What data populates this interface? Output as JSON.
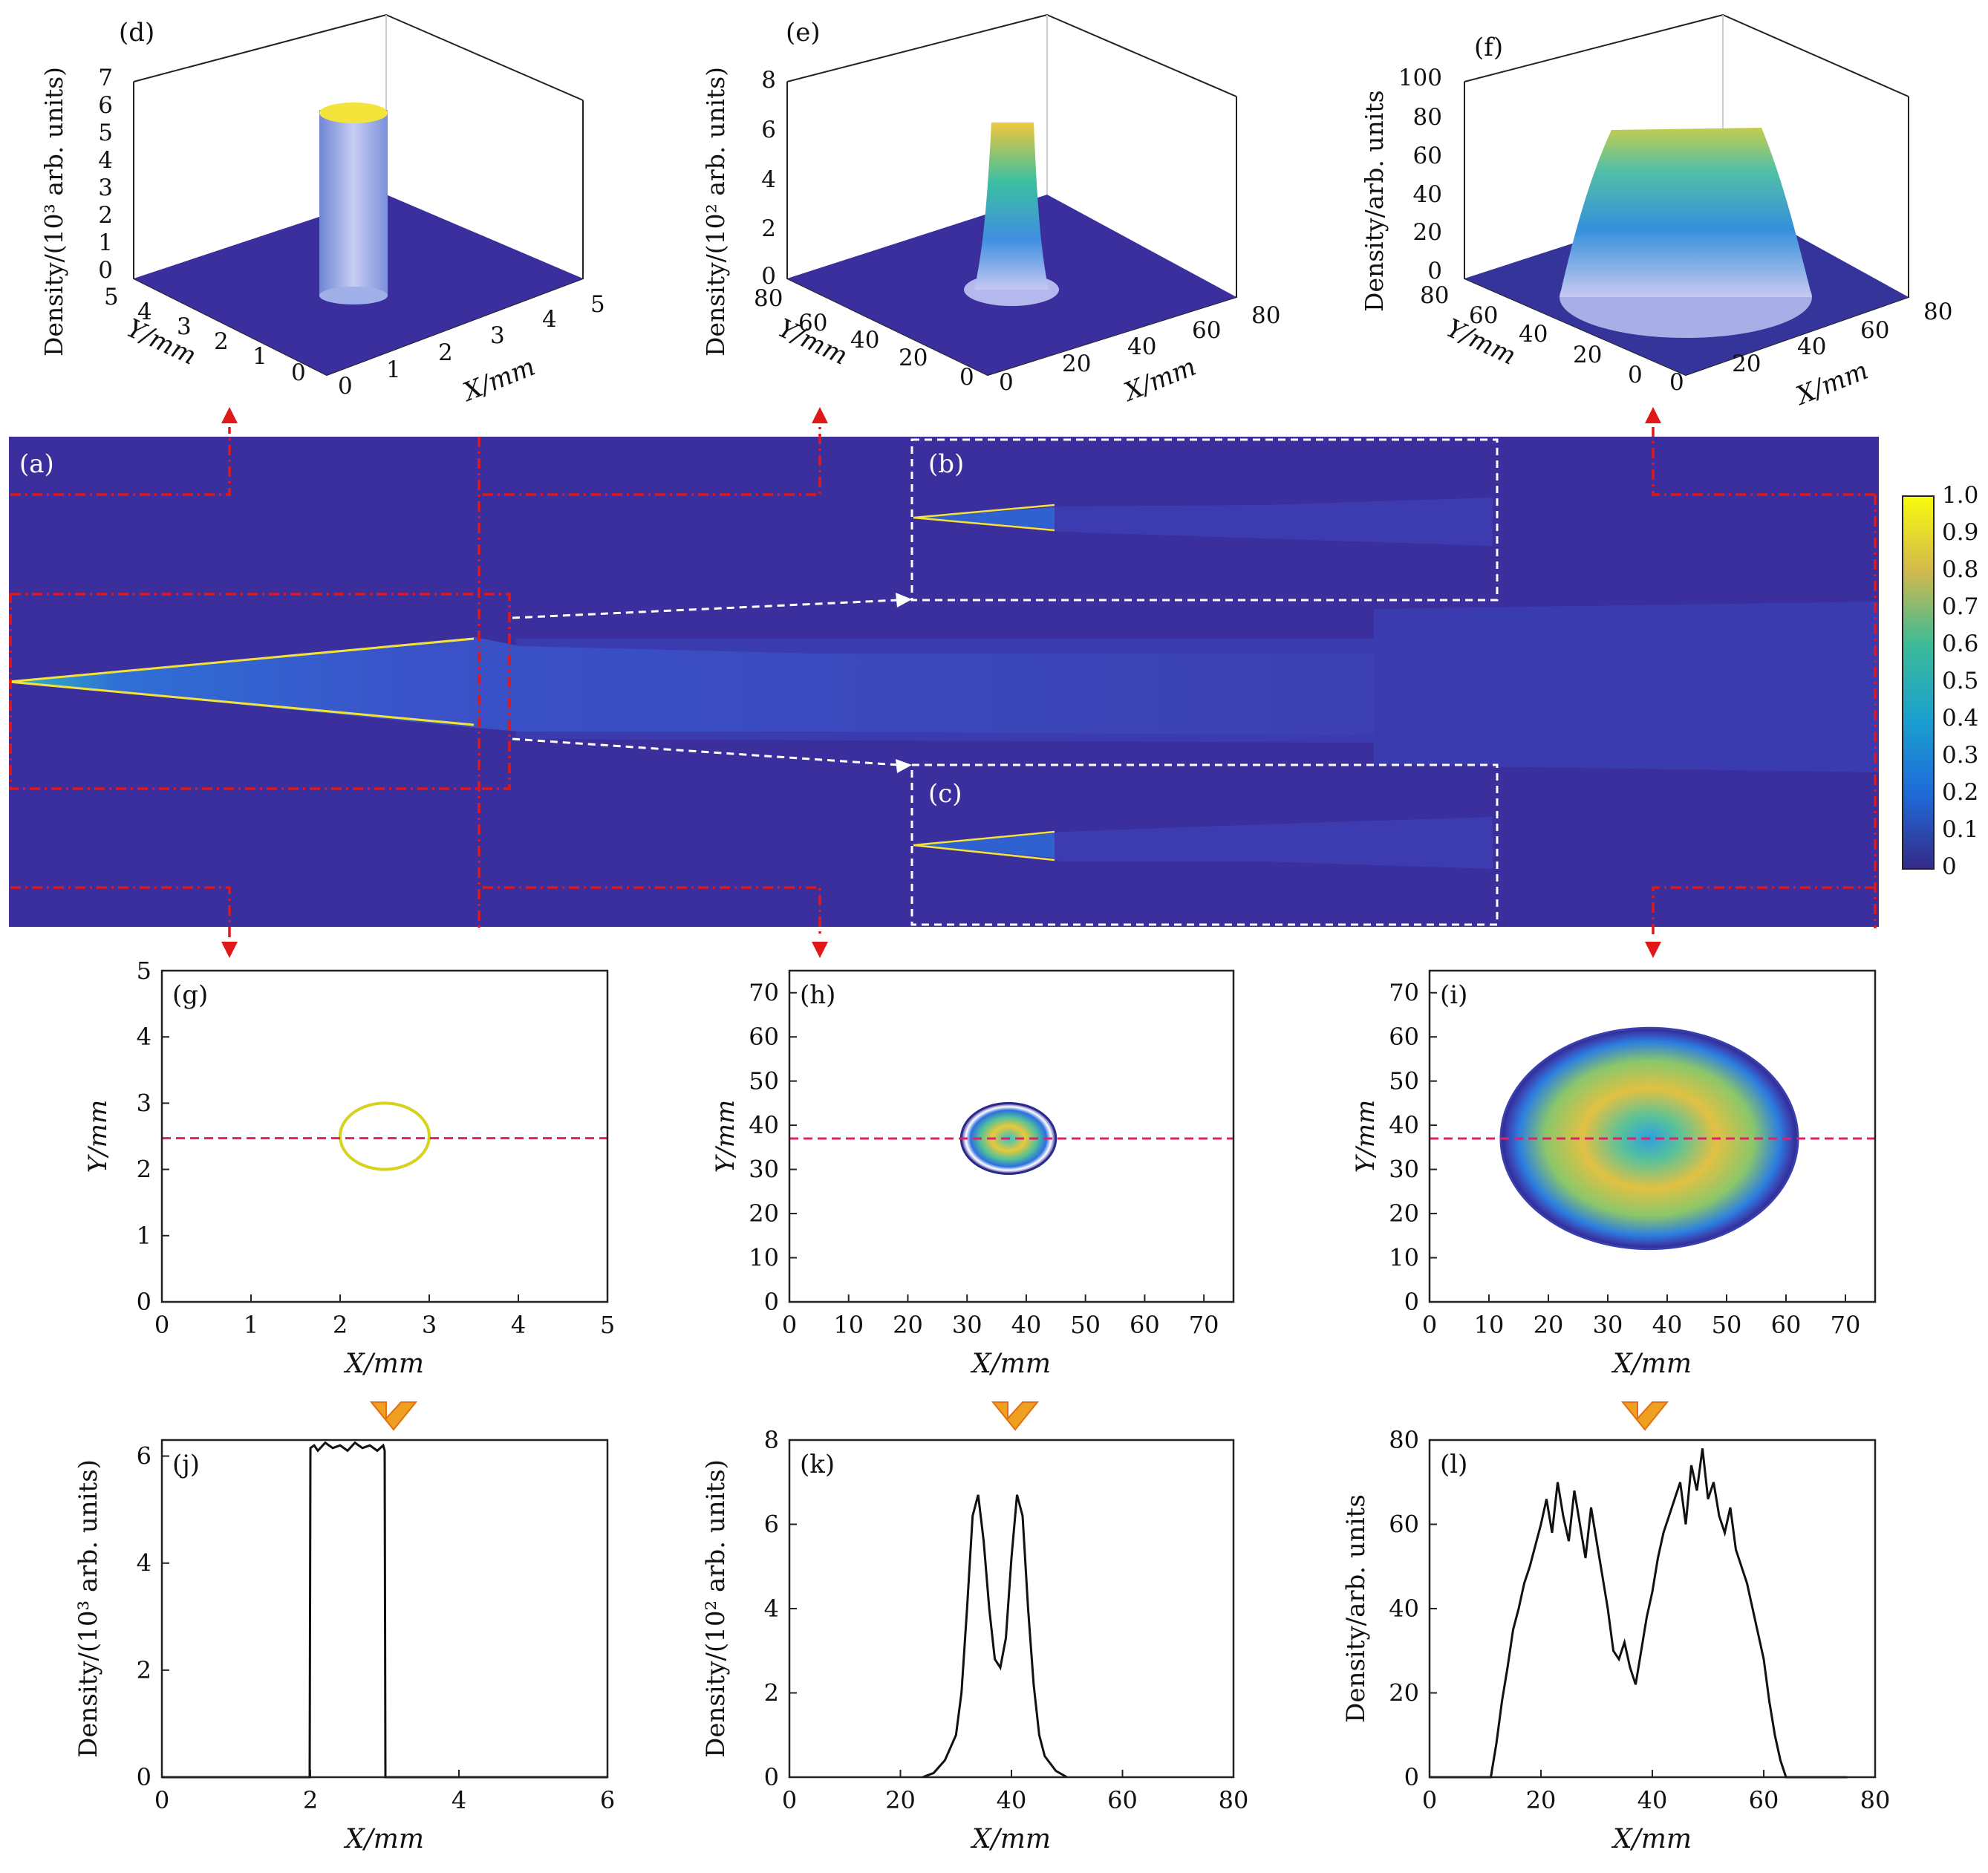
{
  "colors": {
    "background_field": "#3a2f9c",
    "plume": "#3c3fb0",
    "dash_red": "#e01818",
    "dash_white": "#ffffff",
    "yellow": "#f4e23a",
    "magenta_line": "#e0206a"
  },
  "colorbar": {
    "ticks": [
      "1.0",
      "0.9",
      "0.8",
      "0.7",
      "0.6",
      "0.5",
      "0.4",
      "0.3",
      "0.2",
      "0.1",
      "0"
    ]
  },
  "main_panel": {
    "label_a": "(a)",
    "label_b": "(b)",
    "label_c": "(c)"
  },
  "surface_panels": [
    {
      "label": "(d)",
      "zlabel": "Density/(10³ arb. units)",
      "zticks": [
        "7",
        "6",
        "5",
        "4",
        "3",
        "2",
        "1",
        "0"
      ],
      "yticks": [
        "5",
        "4",
        "3",
        "2",
        "1",
        "0"
      ],
      "xticks": [
        "0",
        "1",
        "2",
        "3",
        "4",
        "5"
      ],
      "ylabel": "Y/mm",
      "xlabel": "X/mm"
    },
    {
      "label": "(e)",
      "zlabel": "Density/(10² arb. units)",
      "zticks": [
        "8",
        "6",
        "4",
        "2",
        "0"
      ],
      "yticks": [
        "80",
        "60",
        "40",
        "20",
        "0"
      ],
      "xticks": [
        "0",
        "20",
        "40",
        "60",
        "80"
      ],
      "ylabel": "Y/mm",
      "xlabel": "X/mm"
    },
    {
      "label": "(f)",
      "zlabel": "Density/arb. units",
      "zticks": [
        "100",
        "80",
        "60",
        "40",
        "20",
        "0"
      ],
      "yticks": [
        "80",
        "60",
        "40",
        "20",
        "0"
      ],
      "xticks": [
        "0",
        "20",
        "40",
        "60",
        "80"
      ],
      "ylabel": "Y/mm",
      "xlabel": "X/mm"
    }
  ],
  "chart_data": [
    {
      "type": "heatmap",
      "label": "(g)",
      "xlabel": "X/mm",
      "ylabel": "Y/mm",
      "xlim": [
        0,
        5
      ],
      "ylim": [
        0,
        5
      ],
      "xticks": [
        "0",
        "1",
        "2",
        "3",
        "4",
        "5"
      ],
      "yticks": [
        "0",
        "1",
        "2",
        "3",
        "4",
        "5"
      ],
      "ring_center": [
        2.5,
        2.5
      ],
      "ring_radius": 0.5,
      "cut_y": 2.47
    },
    {
      "type": "heatmap",
      "label": "(h)",
      "xlabel": "X/mm",
      "ylabel": "Y/mm",
      "xlim": [
        0,
        75
      ],
      "ylim": [
        0,
        75
      ],
      "xticks": [
        "0",
        "10",
        "20",
        "30",
        "40",
        "50",
        "60",
        "70"
      ],
      "yticks": [
        "0",
        "10",
        "20",
        "30",
        "40",
        "50",
        "60",
        "70"
      ],
      "ring_center": [
        37,
        37
      ],
      "ring_radius": 8,
      "cut_y": 37
    },
    {
      "type": "heatmap",
      "label": "(i)",
      "xlabel": "X/mm",
      "ylabel": "Y/mm",
      "xlim": [
        0,
        75
      ],
      "ylim": [
        0,
        75
      ],
      "xticks": [
        "0",
        "10",
        "20",
        "30",
        "40",
        "50",
        "60",
        "70"
      ],
      "yticks": [
        "0",
        "10",
        "20",
        "30",
        "40",
        "50",
        "60",
        "70"
      ],
      "ring_center": [
        37,
        37
      ],
      "ring_radius": 25,
      "cut_y": 37
    },
    {
      "type": "line",
      "label": "(j)",
      "xlabel": "X/mm",
      "ylabel": "Density/(10³ arb. units)",
      "xlim": [
        0,
        6
      ],
      "ylim": [
        0,
        6.3
      ],
      "xticks": [
        "0",
        "2",
        "4",
        "6"
      ],
      "yticks": [
        "0",
        "2",
        "4",
        "6"
      ],
      "x": [
        0,
        1.99,
        2.0,
        2.05,
        2.1,
        2.2,
        2.3,
        2.4,
        2.5,
        2.6,
        2.7,
        2.8,
        2.9,
        2.98,
        3.0,
        3.01,
        6
      ],
      "y": [
        0,
        0,
        6.15,
        6.2,
        6.1,
        6.25,
        6.15,
        6.2,
        6.1,
        6.25,
        6.15,
        6.2,
        6.1,
        6.2,
        6.1,
        0,
        0
      ]
    },
    {
      "type": "line",
      "label": "(k)",
      "xlabel": "X/mm",
      "ylabel": "Density/(10² arb. units)",
      "xlim": [
        0,
        80
      ],
      "ylim": [
        0,
        8
      ],
      "xticks": [
        "0",
        "20",
        "40",
        "60",
        "80"
      ],
      "yticks": [
        "0",
        "2",
        "4",
        "6",
        "8"
      ],
      "x": [
        24,
        26,
        28,
        30,
        31,
        32,
        33,
        34,
        35,
        36,
        37,
        38,
        39,
        40,
        41,
        42,
        43,
        44,
        45,
        46,
        48,
        50
      ],
      "y": [
        0,
        0.1,
        0.4,
        1.0,
        2.0,
        4.0,
        6.2,
        6.7,
        5.6,
        4.0,
        2.8,
        2.6,
        3.3,
        5.2,
        6.7,
        6.2,
        4.0,
        2.2,
        1.0,
        0.5,
        0.15,
        0
      ]
    },
    {
      "type": "line",
      "label": "(l)",
      "xlabel": "X/mm",
      "ylabel": "Density/arb. units",
      "xlim": [
        0,
        80
      ],
      "ylim": [
        0,
        80
      ],
      "xticks": [
        "0",
        "20",
        "40",
        "60",
        "80"
      ],
      "yticks": [
        "0",
        "20",
        "40",
        "60",
        "80"
      ],
      "x": [
        0,
        11,
        12,
        13,
        14,
        15,
        16,
        17,
        18,
        19,
        20,
        21,
        22,
        23,
        24,
        25,
        26,
        27,
        28,
        29,
        30,
        31,
        32,
        33,
        34,
        35,
        36,
        37,
        38,
        39,
        40,
        41,
        42,
        43,
        44,
        45,
        46,
        47,
        48,
        49,
        50,
        51,
        52,
        53,
        54,
        55,
        56,
        57,
        58,
        59,
        60,
        61,
        62,
        63,
        64,
        75
      ],
      "y": [
        0,
        0,
        8,
        18,
        26,
        35,
        40,
        46,
        50,
        55,
        60,
        66,
        58,
        70,
        62,
        56,
        68,
        60,
        52,
        64,
        56,
        48,
        40,
        30,
        28,
        32,
        26,
        22,
        30,
        38,
        44,
        52,
        58,
        62,
        66,
        70,
        60,
        74,
        68,
        78,
        66,
        70,
        62,
        58,
        64,
        54,
        50,
        46,
        40,
        34,
        28,
        18,
        10,
        4,
        0,
        0
      ]
    }
  ]
}
